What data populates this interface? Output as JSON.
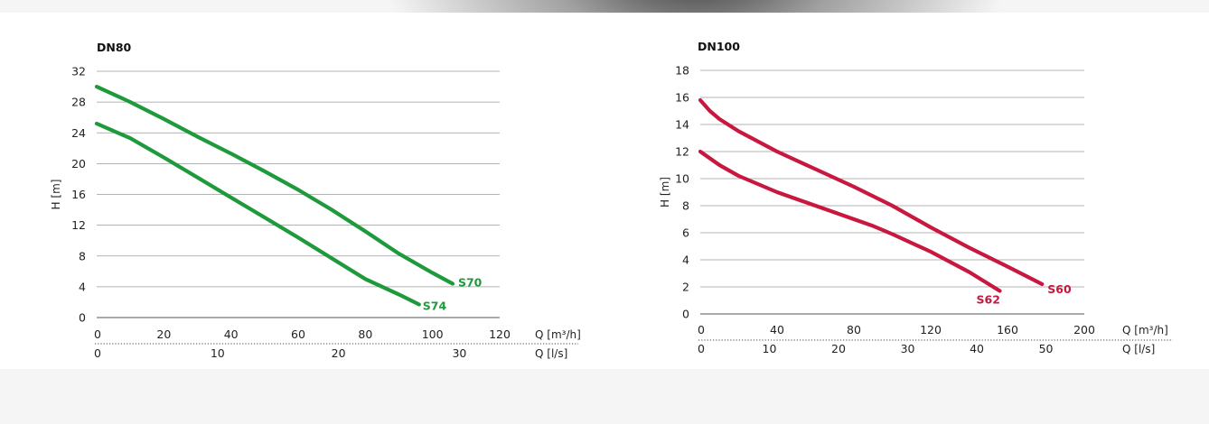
{
  "colors": {
    "dn80": "#1e9a3c",
    "dn100": "#c8183f",
    "grid": "#9a9a9a",
    "text": "#222222"
  },
  "chart_data": [
    {
      "type": "line",
      "title": "DN80",
      "ylabel": "H [m]",
      "xlabel": "Q [m³/h]",
      "xlabel2": "Q [l/s]",
      "xlim": [
        0,
        120
      ],
      "ylim": [
        0,
        32
      ],
      "xticks": [
        0,
        20,
        40,
        60,
        80,
        100,
        120
      ],
      "yticks": [
        0,
        4,
        8,
        12,
        16,
        20,
        24,
        28,
        32
      ],
      "secondary_x_ticks": [
        0,
        10,
        20,
        30
      ],
      "grid": "horizontal",
      "series": [
        {
          "name": "S70",
          "x": [
            0,
            10,
            20,
            30,
            40,
            50,
            60,
            70,
            80,
            90,
            100,
            106
          ],
          "y": [
            30,
            28,
            25.8,
            23.5,
            21.3,
            19,
            16.6,
            14,
            11.2,
            8.3,
            5.8,
            4.4
          ]
        },
        {
          "name": "S74",
          "x": [
            0,
            10,
            20,
            30,
            40,
            50,
            60,
            70,
            80,
            90,
            96
          ],
          "y": [
            25.2,
            23.3,
            20.8,
            18.2,
            15.6,
            13,
            10.4,
            7.7,
            5,
            3,
            1.7
          ]
        }
      ]
    },
    {
      "type": "line",
      "title": "DN100",
      "ylabel": "H [m]",
      "xlabel": "Q [m³/h]",
      "xlabel2": "Q [l/s]",
      "xlim": [
        0,
        200
      ],
      "ylim": [
        0,
        18
      ],
      "xticks": [
        0,
        40,
        80,
        120,
        160,
        200
      ],
      "yticks": [
        0,
        2,
        4,
        6,
        8,
        10,
        12,
        14,
        16,
        18
      ],
      "secondary_x_ticks": [
        0,
        10,
        20,
        30,
        40,
        50
      ],
      "grid": "horizontal",
      "series": [
        {
          "name": "S60",
          "x": [
            0,
            5,
            10,
            20,
            40,
            60,
            80,
            100,
            120,
            140,
            160,
            178
          ],
          "y": [
            15.8,
            15,
            14.4,
            13.5,
            12,
            10.7,
            9.4,
            8,
            6.4,
            4.9,
            3.5,
            2.2
          ]
        },
        {
          "name": "S62",
          "x": [
            0,
            10,
            20,
            40,
            60,
            80,
            90,
            100,
            120,
            140,
            156
          ],
          "y": [
            12,
            11,
            10.2,
            9,
            8,
            7,
            6.5,
            5.9,
            4.6,
            3.1,
            1.7
          ]
        }
      ]
    }
  ]
}
